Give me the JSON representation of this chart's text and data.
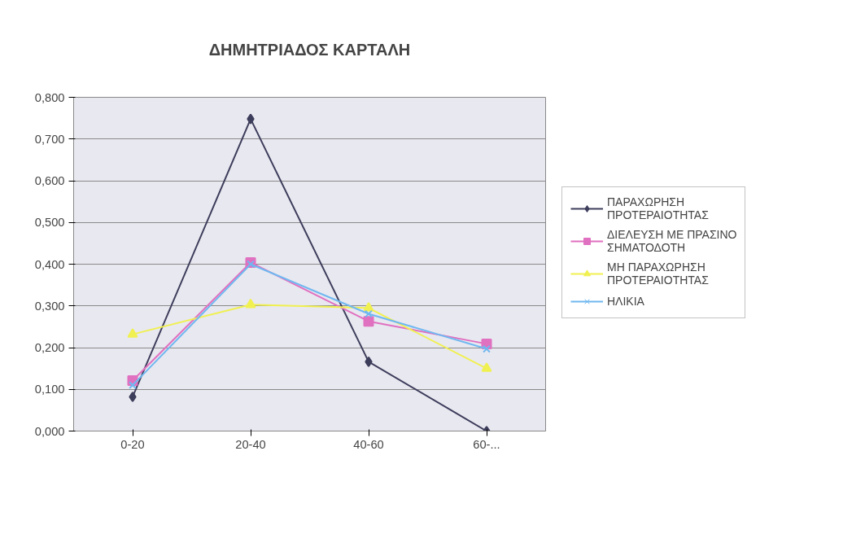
{
  "chart_data": {
    "type": "line",
    "title": "ΔΗΜΗΤΡΙΑΔΟΣ ΚΑΡΤΑΛΗ",
    "categories": [
      "0-20",
      "20-40",
      "40-60",
      "60-..."
    ],
    "series": [
      {
        "name": "ΠΑΡΑΧΩΡΗΣΗ ΠΡΟΤΕΡΑΙΟΤΗΤΑΣ",
        "color": "#3d3d5c",
        "marker": "diamond",
        "values": [
          0.082,
          0.748,
          0.166,
          0.0
        ]
      },
      {
        "name": "ΔΙΕΛΕΥΣΗ ΜΕ ΠΡΑΣΙΝΟ ΣΗΜΑΤΟΔΟΤΗ",
        "color": "#e070c0",
        "marker": "square",
        "values": [
          0.121,
          0.404,
          0.263,
          0.209
        ]
      },
      {
        "name": "ΜΗ ΠΑΡΑΧΩΡΗΣΗ ΠΡΟΤΕΡΑΙΟΤΗΤΑΣ",
        "color": "#f0f050",
        "marker": "triangle",
        "values": [
          0.232,
          0.303,
          0.295,
          0.15
        ]
      },
      {
        "name": "ΗΛΙΚΙΑ",
        "color": "#70b8f0",
        "marker": "cross",
        "values": [
          0.11,
          0.4,
          0.281,
          0.197
        ]
      }
    ],
    "ylim": [
      0,
      0.8
    ],
    "yticks": [
      {
        "value": 0,
        "label": "0,000"
      },
      {
        "value": 0.1,
        "label": "0,100"
      },
      {
        "value": 0.2,
        "label": "0,200"
      },
      {
        "value": 0.3,
        "label": "0,300"
      },
      {
        "value": 0.4,
        "label": "0,400"
      },
      {
        "value": 0.5,
        "label": "0,500"
      },
      {
        "value": 0.6,
        "label": "0,600"
      },
      {
        "value": 0.7,
        "label": "0,700"
      },
      {
        "value": 0.8,
        "label": "0,800"
      }
    ],
    "grid": "y",
    "legend": "right",
    "line_style": "solid"
  }
}
